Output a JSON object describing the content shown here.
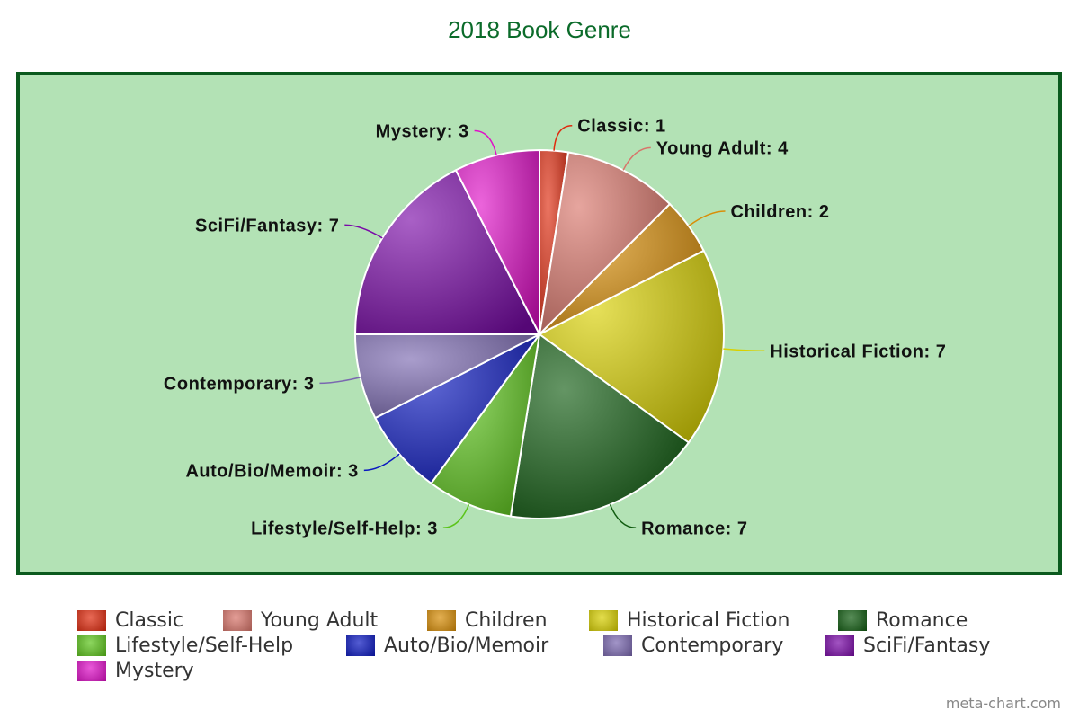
{
  "chart_data": {
    "type": "pie",
    "title": "2018 Book Genre",
    "categories": [
      "Classic",
      "Young Adult",
      "Children",
      "Historical Fiction",
      "Romance",
      "Lifestyle/Self-Help",
      "Auto/Bio/Memoir",
      "Contemporary",
      "SciFi/Fantasy",
      "Mystery"
    ],
    "values": [
      1,
      4,
      2,
      7,
      7,
      3,
      3,
      3,
      7,
      3
    ],
    "labels": [
      "Classic: 1",
      "Young Adult: 4",
      "Children: 2",
      "Historical Fiction: 7",
      "Romance: 7",
      "Lifestyle/Self-Help: 3",
      "Auto/Bio/Memoir: 3",
      "Contemporary: 3",
      "SciFi/Fantasy: 7",
      "Mystery: 3"
    ],
    "colors": [
      "#e02a0e",
      "#d8756a",
      "#d98e08",
      "#d8d000",
      "#105c10",
      "#5cc41a",
      "#0b18c0",
      "#7a68b0",
      "#7a0aa8",
      "#e010c8"
    ],
    "legend_position": "bottom",
    "background": "#b3e2b5",
    "border_color": "#0b5a1e"
  },
  "watermark": "meta-chart.com"
}
